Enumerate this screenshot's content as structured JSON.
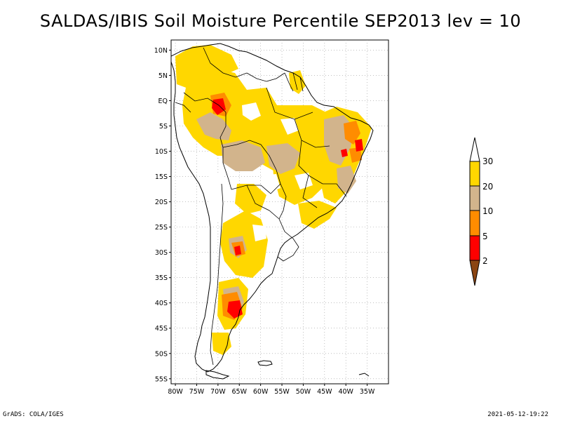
{
  "title": "SALDAS/IBIS Soil Moisture Percentile SEP2013 lev = 10",
  "footer": {
    "left": "GrADS: COLA/IGES",
    "right": "2021-05-12-19:22"
  },
  "map": {
    "lon_range": [
      -81,
      -30
    ],
    "lat_range": [
      -56,
      12
    ],
    "lat_ticks": [
      {
        "value": 10,
        "label": "10N"
      },
      {
        "value": 5,
        "label": "5N"
      },
      {
        "value": 0,
        "label": "EQ"
      },
      {
        "value": -5,
        "label": "5S"
      },
      {
        "value": -10,
        "label": "10S"
      },
      {
        "value": -15,
        "label": "15S"
      },
      {
        "value": -20,
        "label": "20S"
      },
      {
        "value": -25,
        "label": "25S"
      },
      {
        "value": -30,
        "label": "30S"
      },
      {
        "value": -35,
        "label": "35S"
      },
      {
        "value": -40,
        "label": "40S"
      },
      {
        "value": -45,
        "label": "45S"
      },
      {
        "value": -50,
        "label": "50S"
      },
      {
        "value": -55,
        "label": "55S"
      }
    ],
    "lon_ticks": [
      {
        "value": -80,
        "label": "80W"
      },
      {
        "value": -75,
        "label": "75W"
      },
      {
        "value": -70,
        "label": "70W"
      },
      {
        "value": -65,
        "label": "65W"
      },
      {
        "value": -60,
        "label": "60W"
      },
      {
        "value": -55,
        "label": "55W"
      },
      {
        "value": -50,
        "label": "50W"
      },
      {
        "value": -45,
        "label": "45W"
      },
      {
        "value": -40,
        "label": "40W"
      },
      {
        "value": -35,
        "label": "35W"
      }
    ],
    "grid": true
  },
  "colorbar": {
    "levels": [
      "2",
      "5",
      "10",
      "20",
      "30"
    ],
    "colors": {
      "below_2": "#8b4513",
      "2_5": "#ff0000",
      "5_10": "#ff8c00",
      "10_20": "#d2b48c",
      "20_30": "#ffd700",
      "above_30": "#ffffff"
    }
  }
}
